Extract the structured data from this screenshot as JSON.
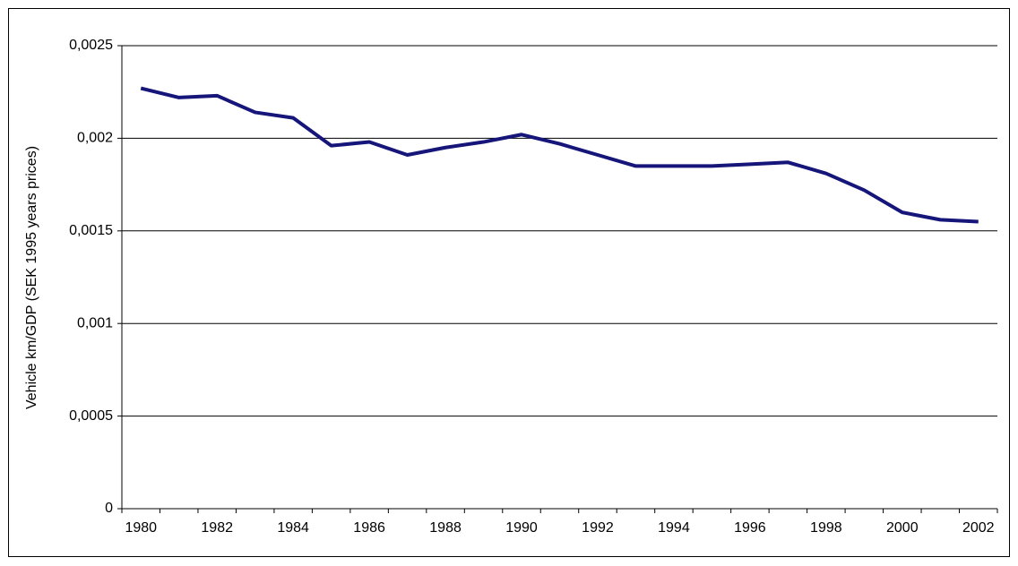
{
  "chart_data": {
    "type": "line",
    "y_label": "Vehicle km/GDP (SEK 1995 years prices)",
    "categories": [
      "1980",
      null,
      "1982",
      null,
      "1984",
      null,
      "1986",
      null,
      "1988",
      null,
      "1990",
      null,
      "1992",
      null,
      "1994",
      null,
      "1996",
      null,
      "1998",
      null,
      "2000",
      null,
      "2002"
    ],
    "series": [
      {
        "name": null,
        "color": "#15157a",
        "values": [
          0.00227,
          0.00222,
          0.00223,
          0.00214,
          0.00211,
          0.00196,
          0.00198,
          0.00191,
          0.00195,
          0.00198,
          0.00202,
          0.00197,
          0.00191,
          0.00185,
          0.00185,
          0.00185,
          0.00186,
          0.00187,
          0.00181,
          0.00172,
          0.0016,
          0.00156,
          0.00155
        ]
      }
    ],
    "ylim": [
      0,
      0.0025
    ],
    "yticks": [
      0,
      {
        "value": 0.0005,
        "label": "0,0005"
      },
      {
        "value": 0.001,
        "label": "0,001"
      },
      {
        "value": 0.0015,
        "label": "0,0015"
      },
      {
        "value": 0.002,
        "label": "0,002"
      },
      {
        "value": 0.0025,
        "label": "0,0025"
      }
    ],
    "grid": true
  }
}
